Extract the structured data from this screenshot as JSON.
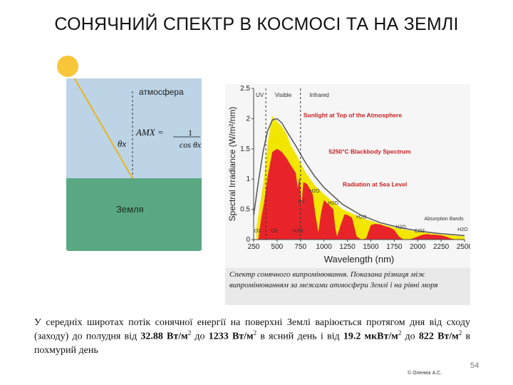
{
  "slide": {
    "title": "СОНЯЧНИЙ СПЕКТР В КОСМОСІ ТА НА ЗЕМЛІ",
    "page_number": "54",
    "author": "© Оленюк А.С."
  },
  "diagram": {
    "atmosphere_label": "атмосфера",
    "earth_label": "Земля",
    "formula_lhs": "AMX =",
    "formula_num": "1",
    "formula_den": "cos θx",
    "angle_label": "θx",
    "colors": {
      "atmosphere": "#bcd4e6",
      "earth": "#5aa882",
      "sun": "#f7c739"
    }
  },
  "chart_data": {
    "type": "area",
    "xlabel": "Wavelength (nm)",
    "ylabel": "Spectral Irradiance (W/m²/nm)",
    "xlim": [
      250,
      2500
    ],
    "ylim": [
      0,
      2.5
    ],
    "x_ticks": [
      250,
      500,
      750,
      1000,
      1250,
      1500,
      1750,
      2000,
      2250,
      2500
    ],
    "y_ticks": [
      0,
      0.5,
      1,
      1.5,
      2,
      2.5
    ],
    "grid": false,
    "region_labels": [
      "UV",
      "Visible",
      "Infrared"
    ],
    "region_boundaries": [
      380,
      750
    ],
    "series": [
      {
        "name": "Sunlight at Top of the Atmosphere",
        "color": "#f2e600",
        "x": [
          280,
          320,
          360,
          400,
          450,
          500,
          550,
          600,
          650,
          700,
          800,
          900,
          1000,
          1100,
          1200,
          1400,
          1600,
          1800,
          2000,
          2200,
          2500
        ],
        "values": [
          0.2,
          0.6,
          1.0,
          1.6,
          2.05,
          1.95,
          1.87,
          1.75,
          1.55,
          1.42,
          1.12,
          0.9,
          0.75,
          0.62,
          0.5,
          0.36,
          0.26,
          0.18,
          0.13,
          0.09,
          0.05
        ]
      },
      {
        "name": "5250°C Blackbody Spectrum",
        "color": "#555555",
        "x": [
          250,
          300,
          350,
          400,
          450,
          500,
          550,
          600,
          700,
          800,
          900,
          1000,
          1200,
          1400,
          1600,
          1800,
          2000,
          2200,
          2500
        ],
        "values": [
          0.4,
          0.95,
          1.45,
          1.8,
          1.98,
          2.0,
          1.93,
          1.8,
          1.55,
          1.28,
          1.05,
          0.86,
          0.58,
          0.4,
          0.28,
          0.2,
          0.145,
          0.105,
          0.065
        ]
      },
      {
        "name": "Radiation at Sea Level",
        "color": "#e8242a",
        "x": [
          300,
          330,
          360,
          400,
          450,
          500,
          550,
          600,
          650,
          700,
          720,
          740,
          760,
          780,
          820,
          880,
          910,
          940,
          970,
          1000,
          1050,
          1100,
          1120,
          1140,
          1180,
          1220,
          1260,
          1300,
          1350,
          1400,
          1450,
          1500,
          1550,
          1600,
          1650,
          1700,
          1750,
          1800,
          1850,
          1900,
          1950,
          2000,
          2050,
          2100,
          2150,
          2200,
          2250,
          2300,
          2350,
          2400
        ],
        "values": [
          0.0,
          0.35,
          0.6,
          1.05,
          1.45,
          1.5,
          1.45,
          1.35,
          1.22,
          1.1,
          0.85,
          1.05,
          0.55,
          0.95,
          0.92,
          0.75,
          0.4,
          0.12,
          0.45,
          0.65,
          0.58,
          0.5,
          0.2,
          0.05,
          0.25,
          0.42,
          0.4,
          0.36,
          0.05,
          0.0,
          0.02,
          0.24,
          0.26,
          0.25,
          0.22,
          0.2,
          0.16,
          0.05,
          0.0,
          0.0,
          0.02,
          0.05,
          0.08,
          0.09,
          0.08,
          0.08,
          0.07,
          0.05,
          0.02,
          0.0
        ]
      }
    ],
    "annotations": [
      {
        "text": "O3",
        "x": 290,
        "y": 0.12
      },
      {
        "text": "O2",
        "x": 760,
        "y": 0.6
      },
      {
        "text": "O3",
        "x": 470,
        "y": 0.12
      },
      {
        "text": "H2O",
        "x": 720,
        "y": 0.12
      },
      {
        "text": "H2O",
        "x": 900,
        "y": 0.78
      },
      {
        "text": "H2O",
        "x": 1100,
        "y": 0.58
      },
      {
        "text": "H2O",
        "x": 1400,
        "y": 0.35
      },
      {
        "text": "H2O",
        "x": 1820,
        "y": 0.18
      },
      {
        "text": "CO2",
        "x": 2020,
        "y": 0.12
      },
      {
        "text": "H2O",
        "x": 2480,
        "y": 0.14
      },
      {
        "text": "Absorption Bands",
        "x": 2280,
        "y": 0.32
      }
    ]
  },
  "caption": "Спектр сонячного випромінювання. Показана різниця між випромінюванням за межами атмосфери Землі і на рівні моря",
  "paragraph": {
    "p1": "У середніх широтах потік сонячної енергії на поверхні Землі варіюється протягом дня від сходу (заходу) до полудня від ",
    "v1": "32.88 Вт/м",
    "sup": "2",
    "p2": " до ",
    "v2": "1233 Вт/м",
    "p3": "  в ясний день і від ",
    "v3": "19.2 мкВт/м",
    "p4": " до ",
    "v4": "822 Вт/м",
    "p5": " в похмурий день"
  }
}
